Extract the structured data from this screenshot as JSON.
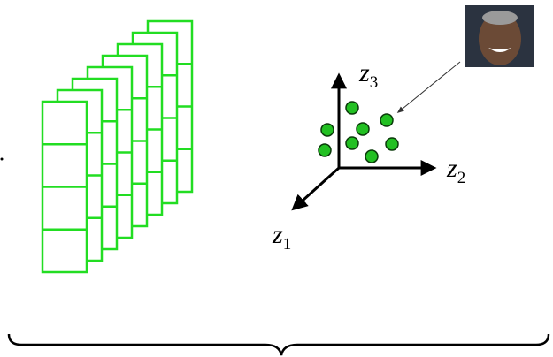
{
  "axes": [
    {
      "label": "z",
      "subscript": "1"
    },
    {
      "label": "z",
      "subscript": "2"
    },
    {
      "label": "z",
      "subscript": "3"
    }
  ]
}
